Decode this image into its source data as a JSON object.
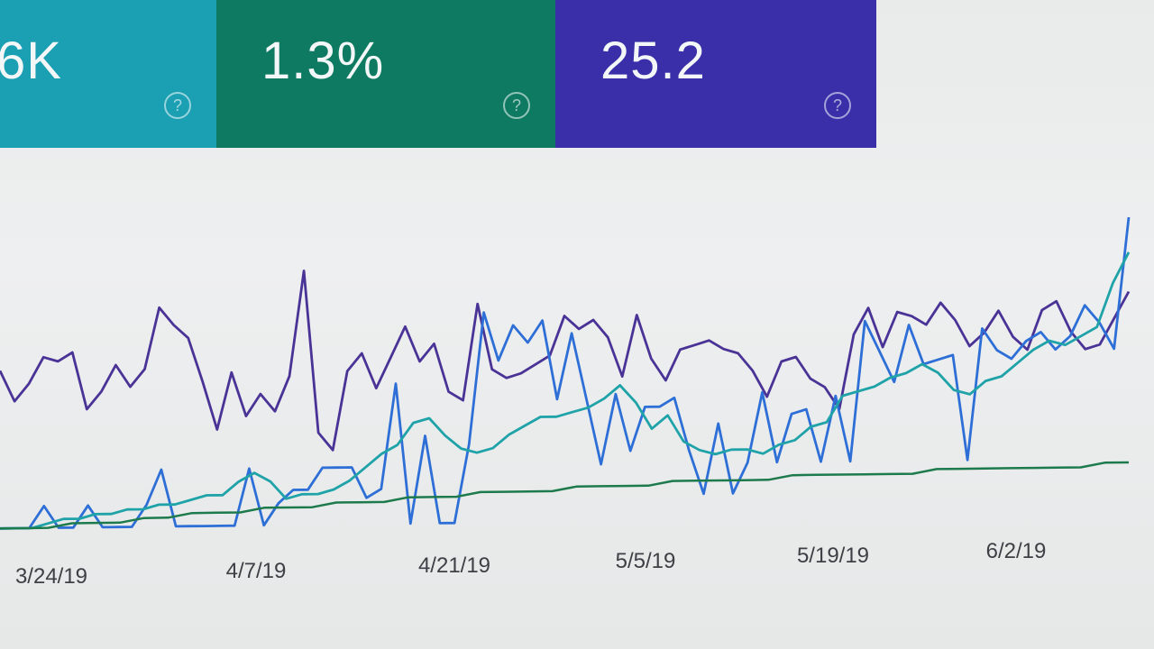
{
  "cards": [
    {
      "label": "",
      "value": "6K",
      "help_icon": "help-circle-icon",
      "color": "#1a9fb3"
    },
    {
      "label": "",
      "value": "1.3%",
      "help_icon": "help-circle-icon",
      "color": "#0f7a62"
    },
    {
      "label": "",
      "value": "25.2",
      "help_icon": "help-circle-icon",
      "color": "#3a2fa8"
    }
  ],
  "chart_data": {
    "type": "line",
    "x_tick_labels": [
      "3/24/19",
      "4/7/19",
      "4/21/19",
      "5/5/19",
      "5/19/19",
      "6/2/19"
    ],
    "grid": false,
    "legend": "none",
    "y_axis_visible": false,
    "series": [
      {
        "color": "#4a3396",
        "values": [
          38,
          31,
          35,
          41,
          40,
          42,
          29,
          33,
          39,
          34,
          38,
          52,
          48,
          45,
          35,
          24,
          37,
          27,
          32,
          28,
          36,
          60,
          23,
          19,
          37,
          41,
          33,
          40,
          47,
          39,
          43,
          32,
          30,
          52,
          37,
          35,
          36,
          38,
          40,
          49,
          46,
          48,
          44,
          35,
          49,
          39,
          34,
          41,
          42,
          43,
          41,
          40,
          36,
          30,
          38,
          39,
          34,
          32,
          27,
          44,
          50,
          41,
          49,
          48,
          46,
          51,
          47,
          41,
          44,
          49,
          43,
          40,
          49,
          51,
          44,
          40,
          41,
          47,
          53
        ]
      },
      {
        "color": "#2d6fd6",
        "values": [
          2,
          2,
          2,
          7,
          2,
          2,
          7,
          2,
          2,
          2,
          7,
          15,
          2,
          2,
          2,
          2,
          2,
          15,
          2,
          7,
          10,
          10,
          15,
          15,
          15,
          8,
          10,
          34,
          2,
          22,
          2,
          2,
          20,
          50,
          39,
          47,
          43,
          48,
          30,
          45,
          30,
          15,
          31,
          18,
          28,
          28,
          30,
          18,
          8,
          24,
          8,
          15,
          31,
          15,
          26,
          27,
          15,
          30,
          15,
          47,
          40,
          33,
          46,
          37,
          38,
          39,
          15,
          45,
          40,
          38,
          42,
          44,
          40,
          43,
          50,
          46,
          40,
          70
        ]
      },
      {
        "color": "#1fa3a8",
        "values": [
          2,
          2,
          2,
          3,
          4,
          4,
          5,
          5,
          6,
          6,
          7,
          7,
          8,
          9,
          9,
          12,
          14,
          12,
          8,
          9,
          9,
          10,
          12,
          15,
          18,
          20,
          25,
          26,
          22,
          19,
          18,
          19,
          22,
          24,
          26,
          26,
          27,
          28,
          30,
          33,
          29,
          23,
          26,
          20,
          18,
          17,
          18,
          18,
          17,
          19,
          20,
          23,
          24,
          30,
          31,
          32,
          34,
          35,
          37,
          35,
          31,
          30,
          33,
          34,
          37,
          40,
          42,
          41,
          43,
          45,
          55,
          62
        ]
      },
      {
        "color": "#1d7a4c",
        "values": [
          2,
          2,
          2,
          3,
          3,
          3,
          4,
          4,
          5,
          5,
          5,
          6,
          6,
          6,
          7,
          7,
          7,
          8,
          8,
          8,
          9,
          9,
          9,
          9,
          10,
          10,
          10,
          10,
          11,
          11,
          11,
          11,
          11,
          12,
          12,
          12,
          12,
          12,
          12,
          13,
          13,
          13,
          13,
          13,
          13,
          13,
          14,
          14
        ]
      }
    ]
  }
}
